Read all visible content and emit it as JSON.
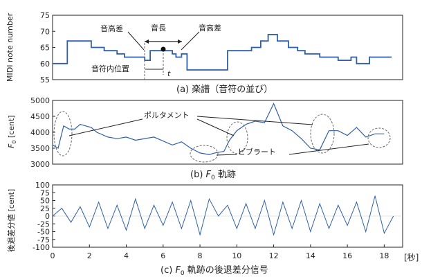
{
  "colors": {
    "line": "#2f5fa8",
    "axis": "#222222",
    "dashed": "#666666"
  },
  "panels": [
    {
      "id": "a",
      "caption": "(a) 楽譜（音符の並び）",
      "ylabel": "MIDI note number",
      "yticks": [
        "55",
        "60",
        "65",
        "70",
        "75"
      ],
      "annotations": {
        "pitch_diff_left": "音高差",
        "note_length": "音長",
        "pitch_diff_right": "音高差",
        "position": "音符内位置",
        "t": "t"
      }
    },
    {
      "id": "b",
      "caption_prefix": "(b) ",
      "caption_var": "F",
      "caption_sub": "0",
      "caption_suffix": " 軌跡",
      "ylabel_var": "F",
      "ylabel_sub": "0",
      "ylabel_unit": " [cent]",
      "yticks": [
        "3000",
        "3500",
        "4000",
        "4500",
        "5000"
      ],
      "annotations": {
        "portamento": "ポルタメント",
        "vibrato": "ビブラート"
      }
    },
    {
      "id": "c",
      "caption_prefix": "(c) ",
      "caption_var": "F",
      "caption_sub": "0",
      "caption_suffix": " 軌跡の後退差分信号",
      "ylabel": "後退差分値 [cent]",
      "yticks": [
        "-100",
        "-75",
        "-50",
        "-25",
        "0",
        "25",
        "50",
        "75",
        "100"
      ],
      "xticks": [
        "0",
        "2",
        "4",
        "6",
        "8",
        "10",
        "12",
        "14",
        "16",
        "18"
      ],
      "xunit": "[秒]"
    }
  ],
  "chart_data": [
    {
      "type": "line",
      "panel": "a",
      "title": "(a) 楽譜（音符の並び）",
      "ylabel": "MIDI note number",
      "xlabel": "[秒]",
      "ylim": [
        55,
        75
      ],
      "xlim": [
        0,
        19
      ],
      "series": [
        {
          "x": [
            0.0,
            0.8,
            2.1,
            2.8,
            3.5,
            3.9,
            5.0,
            5.3,
            6.5,
            6.7,
            7.0,
            7.3,
            8.7,
            9.0,
            9.5,
            10.8,
            11.3,
            11.7,
            12.2,
            12.8,
            13.3,
            13.7,
            14.5,
            15.0,
            15.5,
            16.2,
            16.5,
            17.2,
            18.4
          ],
          "y": [
            60,
            67,
            65,
            64,
            63,
            62,
            61,
            64,
            63,
            62,
            63,
            58,
            58,
            58,
            64,
            65,
            67,
            69,
            67,
            65,
            64,
            63,
            62,
            62,
            61,
            62,
            60,
            62,
            62
          ]
        }
      ]
    },
    {
      "type": "line",
      "panel": "b",
      "title": "(b) F0 軌跡",
      "ylabel": "F0 [cent]",
      "xlabel": "[秒]",
      "ylim": [
        3000,
        5000
      ],
      "xlim": [
        0,
        19
      ],
      "series": [
        {
          "x": [
            0.0,
            0.3,
            0.6,
            0.9,
            1.2,
            1.5,
            1.8,
            2.1,
            2.4,
            3.0,
            3.5,
            4.0,
            4.5,
            5.5,
            6.5,
            7.0,
            7.5,
            8.0,
            8.5,
            8.8,
            9.3,
            9.6,
            10.0,
            10.5,
            11.0,
            11.5,
            12.0,
            12.5,
            13.0,
            13.5,
            14.0,
            14.5,
            15.0,
            15.5,
            16.0,
            16.5,
            17.0,
            17.5,
            18.0
          ],
          "y": [
            3600,
            3500,
            4200,
            4100,
            4100,
            4250,
            4200,
            4150,
            4000,
            3850,
            3800,
            3850,
            3750,
            3850,
            3600,
            3700,
            3500,
            3350,
            3300,
            3350,
            3400,
            3750,
            4050,
            4250,
            4350,
            4300,
            4900,
            4200,
            4050,
            3800,
            3500,
            3450,
            4050,
            4050,
            3900,
            4150,
            3850,
            3950,
            3950
          ]
        }
      ]
    },
    {
      "type": "line",
      "panel": "c",
      "title": "(c) F0 軌跡の後退差分信号",
      "ylabel": "後退差分値 [cent]",
      "xlabel": "[秒]",
      "ylim": [
        -100,
        100
      ],
      "xlim": [
        0,
        19
      ],
      "series": [
        {
          "x": [
            0.0,
            0.5,
            1.0,
            1.5,
            2.0,
            2.5,
            3.0,
            3.5,
            4.0,
            4.5,
            5.0,
            5.5,
            6.0,
            6.5,
            7.0,
            7.5,
            8.0,
            8.5,
            9.0,
            9.5,
            10.0,
            10.5,
            11.0,
            11.5,
            12.0,
            12.5,
            13.0,
            13.5,
            14.0,
            14.5,
            15.0,
            15.5,
            16.0,
            16.5,
            17.0,
            17.5,
            18.0,
            18.5
          ],
          "y": [
            0,
            25,
            -20,
            30,
            -35,
            45,
            -40,
            35,
            -45,
            55,
            -40,
            35,
            -30,
            45,
            -40,
            50,
            -60,
            55,
            0,
            35,
            -40,
            40,
            -40,
            50,
            -60,
            45,
            -40,
            50,
            -50,
            40,
            -40,
            35,
            -30,
            45,
            -50,
            65,
            -55,
            0
          ]
        }
      ]
    }
  ]
}
